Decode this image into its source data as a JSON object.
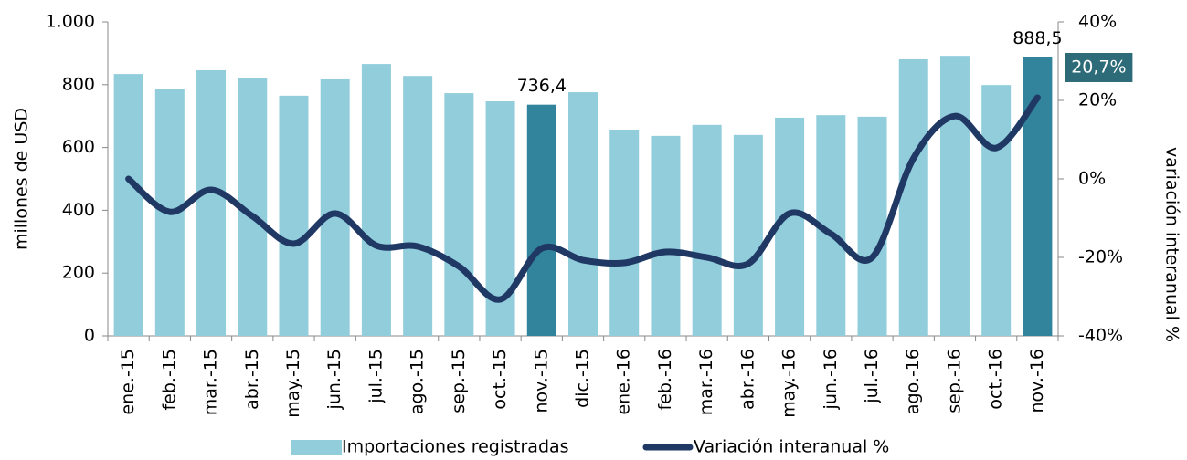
{
  "chart_data": {
    "type": "bar_line",
    "categories": [
      "ene.-15",
      "feb.-15",
      "mar.-15",
      "abr.-15",
      "may.-15",
      "jun.-15",
      "jul.-15",
      "ago.-15",
      "sep.-15",
      "oct.-15",
      "nov.-15",
      "dic.-15",
      "ene.-16",
      "feb.-16",
      "mar.-16",
      "abr.-16",
      "may.-16",
      "jun.-16",
      "jul.-16",
      "ago.-16",
      "sep.-16",
      "oct.-16",
      "nov.-16"
    ],
    "series": [
      {
        "name": "Importaciones registradas",
        "type": "bar",
        "color": "#92cddc",
        "colors": [
          "#92cddc",
          "#92cddc",
          "#92cddc",
          "#92cddc",
          "#92cddc",
          "#92cddc",
          "#92cddc",
          "#92cddc",
          "#92cddc",
          "#92cddc",
          "#31849b",
          "#92cddc",
          "#92cddc",
          "#92cddc",
          "#92cddc",
          "#92cddc",
          "#92cddc",
          "#92cddc",
          "#92cddc",
          "#92cddc",
          "#92cddc",
          "#92cddc",
          "#31849b"
        ],
        "values": [
          834,
          785,
          846,
          820,
          765,
          817,
          866,
          828,
          773,
          747,
          736.4,
          776,
          657,
          637,
          672,
          640,
          695,
          703,
          698,
          881,
          892,
          799,
          888.5
        ],
        "value_labels": [
          null,
          null,
          null,
          null,
          null,
          null,
          null,
          null,
          null,
          null,
          "736,4",
          null,
          null,
          null,
          null,
          null,
          null,
          null,
          null,
          null,
          null,
          null,
          "888,5"
        ]
      },
      {
        "name": "Variación interanual %",
        "type": "line",
        "axis": "y2",
        "color": "#1f3864",
        "values": [
          0,
          -8.4,
          -2.8,
          -9.5,
          -16.5,
          -8.8,
          -17,
          -17.2,
          -22.3,
          -30.7,
          -17.7,
          -20.7,
          -21.4,
          -18.6,
          -20,
          -21.6,
          -8.8,
          -14,
          -20,
          5.3,
          16,
          7.9,
          20.7
        ],
        "value_labels": [
          null,
          null,
          null,
          null,
          null,
          null,
          null,
          null,
          null,
          null,
          null,
          null,
          null,
          null,
          null,
          null,
          null,
          null,
          null,
          null,
          null,
          null,
          "20,7%"
        ]
      }
    ],
    "ylabel": "millones de USD",
    "y2label": "variación interanual %",
    "ylim": [
      0,
      1000
    ],
    "yticks": [
      0,
      200,
      400,
      600,
      800,
      {
        "value": 1000,
        "label": "1.000"
      }
    ],
    "y2lim": [
      -40,
      40
    ],
    "y2ticks": [
      {
        "value": -40,
        "label": "-40%"
      },
      {
        "value": -20,
        "label": "-20%"
      },
      {
        "value": 0,
        "label": "0%"
      },
      {
        "value": 20,
        "label": "20%"
      },
      {
        "value": 40,
        "label": "40%"
      }
    ],
    "legend": "bottom"
  }
}
